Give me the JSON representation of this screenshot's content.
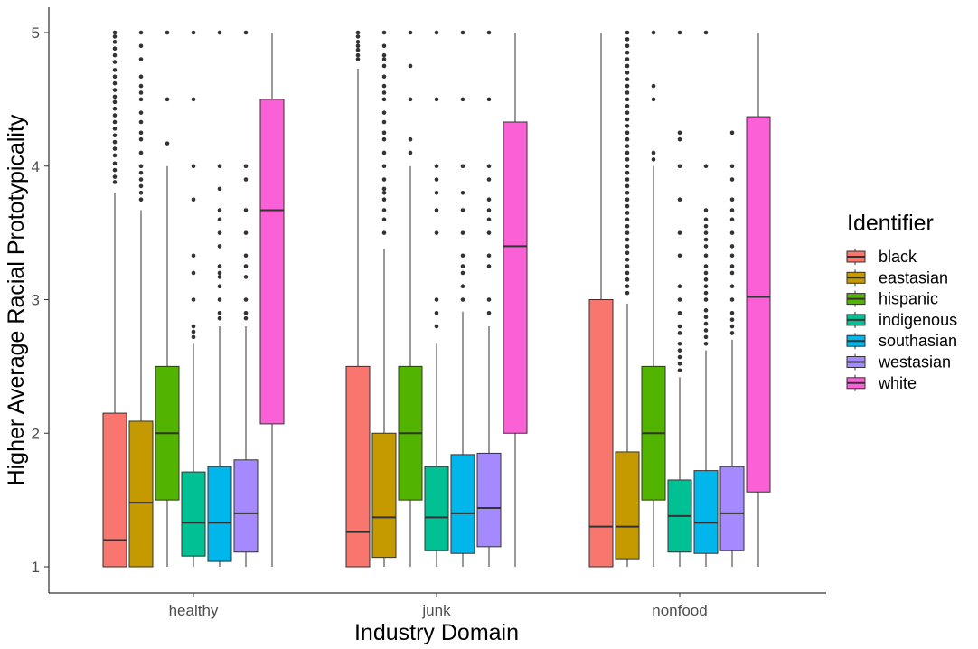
{
  "chart_data": {
    "type": "boxplot",
    "xlabel": "Industry Domain",
    "ylabel": "Higher Average Racial Prototypicality",
    "ylim": [
      0.8,
      5.2
    ],
    "yticks": [
      1,
      2,
      3,
      4,
      5
    ],
    "legend": {
      "title": "Identifier",
      "placement": "right",
      "entries": [
        "black",
        "eastasian",
        "hispanic",
        "indigenous",
        "southasian",
        "westasian",
        "white"
      ]
    },
    "colors": {
      "black": "#F8766D",
      "eastasian": "#C49A00",
      "hispanic": "#53B400",
      "indigenous": "#00C094",
      "southasian": "#00B6EB",
      "westasian": "#A58AFF",
      "white": "#FB61D7"
    },
    "categories": [
      "healthy",
      "junk",
      "nonfood"
    ],
    "groups": [
      {
        "category": "healthy",
        "boxes": [
          {
            "series": "black",
            "min": 1,
            "q1": 1,
            "median": 1.2,
            "q3": 2.15,
            "max": 3.8,
            "outliers": [
              3.88,
              3.92,
              3.97,
              4.02,
              4.08,
              4.13,
              4.18,
              4.23,
              4.28,
              4.33,
              4.38,
              4.43,
              4.48,
              4.52,
              4.57,
              4.62,
              4.67,
              4.72,
              4.78,
              4.83,
              4.88,
              4.93,
              4.97,
              5.0
            ]
          },
          {
            "series": "eastasian",
            "min": 1,
            "q1": 1,
            "median": 1.48,
            "q3": 2.09,
            "max": 3.67,
            "outliers": [
              3.75,
              3.8,
              3.85,
              3.9,
              3.95,
              4.0,
              4.1,
              4.2,
              4.25,
              4.33,
              4.4,
              4.5,
              4.55,
              4.6,
              4.67,
              4.8,
              4.9,
              5.0
            ]
          },
          {
            "series": "hispanic",
            "min": 1,
            "q1": 1.5,
            "median": 2.0,
            "q3": 2.5,
            "max": 4.0,
            "outliers": [
              4.17,
              4.5,
              5.0
            ]
          },
          {
            "series": "indigenous",
            "min": 1,
            "q1": 1.08,
            "median": 1.33,
            "q3": 1.71,
            "max": 2.67,
            "outliers": [
              2.72,
              2.76,
              2.8,
              3.0,
              3.2,
              3.33,
              3.75,
              4.0,
              4.5,
              5.0
            ]
          },
          {
            "series": "southasian",
            "min": 1,
            "q1": 1.04,
            "median": 1.33,
            "q3": 1.75,
            "max": 2.8,
            "outliers": [
              2.86,
              2.9,
              3.0,
              3.1,
              3.17,
              3.2,
              3.25,
              3.4,
              3.5,
              3.6,
              3.67,
              3.83,
              4.0,
              5.0
            ]
          },
          {
            "series": "westasian",
            "min": 1,
            "q1": 1.11,
            "median": 1.4,
            "q3": 1.8,
            "max": 2.8,
            "outliers": [
              2.86,
              2.9,
              3.0,
              3.17,
              3.25,
              3.33,
              3.5,
              3.67,
              3.9,
              4.0,
              5.0
            ]
          },
          {
            "series": "white",
            "min": 1,
            "q1": 2.07,
            "median": 3.67,
            "q3": 4.5,
            "max": 5.0,
            "outliers": []
          }
        ]
      },
      {
        "category": "junk",
        "boxes": [
          {
            "series": "black",
            "min": 1,
            "q1": 1,
            "median": 1.26,
            "q3": 2.5,
            "max": 4.73,
            "outliers": [
              4.8,
              4.83,
              4.87,
              4.9,
              4.93,
              4.97,
              5.0
            ]
          },
          {
            "series": "eastasian",
            "min": 1,
            "q1": 1.07,
            "median": 1.37,
            "q3": 2.0,
            "max": 3.38,
            "outliers": [
              3.5,
              3.6,
              3.67,
              3.75,
              3.8,
              3.83,
              3.9,
              4.0,
              4.1,
              4.2,
              4.25,
              4.33,
              4.4,
              4.5,
              4.55,
              4.6,
              4.67,
              4.75,
              4.8,
              4.83,
              4.9,
              5.0
            ]
          },
          {
            "series": "hispanic",
            "min": 1,
            "q1": 1.5,
            "median": 2.0,
            "q3": 2.5,
            "max": 4.0,
            "outliers": [
              4.1,
              4.2,
              4.5,
              4.75,
              5.0
            ]
          },
          {
            "series": "indigenous",
            "min": 1,
            "q1": 1.12,
            "median": 1.37,
            "q3": 1.75,
            "max": 2.67,
            "outliers": [
              2.8,
              2.9,
              3.0,
              3.5,
              3.67,
              3.8,
              3.9,
              4.0,
              4.5,
              5.0
            ]
          },
          {
            "series": "southasian",
            "min": 1,
            "q1": 1.1,
            "median": 1.4,
            "q3": 1.84,
            "max": 2.91,
            "outliers": [
              3.0,
              3.1,
              3.2,
              3.25,
              3.33,
              3.5,
              3.67,
              3.8,
              4.0,
              4.5,
              5.0
            ]
          },
          {
            "series": "westasian",
            "min": 1,
            "q1": 1.15,
            "median": 1.44,
            "q3": 1.85,
            "max": 2.8,
            "outliers": [
              2.9,
              3.0,
              3.25,
              3.33,
              3.5,
              3.6,
              3.67,
              3.75,
              3.9,
              4.0,
              4.5,
              5.0
            ]
          },
          {
            "series": "white",
            "min": 1,
            "q1": 2.0,
            "median": 3.4,
            "q3": 4.33,
            "max": 5.0,
            "outliers": []
          }
        ]
      },
      {
        "category": "nonfood",
        "boxes": [
          {
            "series": "black",
            "min": 1,
            "q1": 1,
            "median": 1.3,
            "q3": 3.0,
            "max": 5.0,
            "outliers": []
          },
          {
            "series": "eastasian",
            "min": 1,
            "q1": 1.06,
            "median": 1.3,
            "q3": 1.86,
            "max": 2.97,
            "outliers": [
              3.05,
              3.1,
              3.15,
              3.2,
              3.25,
              3.3,
              3.35,
              3.4,
              3.45,
              3.5,
              3.55,
              3.6,
              3.65,
              3.7,
              3.75,
              3.8,
              3.85,
              3.9,
              3.95,
              4.0,
              4.05,
              4.1,
              4.15,
              4.2,
              4.25,
              4.3,
              4.35,
              4.4,
              4.45,
              4.5,
              4.55,
              4.6,
              4.65,
              4.7,
              4.75,
              4.8,
              4.85,
              4.9,
              4.95,
              5.0
            ]
          },
          {
            "series": "hispanic",
            "min": 1,
            "q1": 1.5,
            "median": 2.0,
            "q3": 2.5,
            "max": 4.0,
            "outliers": [
              4.05,
              4.1,
              4.5,
              4.6,
              5.0
            ]
          },
          {
            "series": "indigenous",
            "min": 1,
            "q1": 1.11,
            "median": 1.38,
            "q3": 1.65,
            "max": 2.42,
            "outliers": [
              2.47,
              2.52,
              2.57,
              2.62,
              2.67,
              2.75,
              2.8,
              2.9,
              3.0,
              3.1,
              3.33,
              3.5,
              3.75,
              4.0,
              4.2,
              4.25,
              5.0
            ]
          },
          {
            "series": "southasian",
            "min": 1,
            "q1": 1.1,
            "median": 1.33,
            "q3": 1.72,
            "max": 2.62,
            "outliers": [
              2.67,
              2.72,
              2.77,
              2.82,
              2.87,
              2.92,
              3.0,
              3.05,
              3.1,
              3.15,
              3.2,
              3.25,
              3.33,
              3.4,
              3.45,
              3.5,
              3.55,
              3.6,
              3.67,
              4.0,
              5.0
            ]
          },
          {
            "series": "westasian",
            "min": 1,
            "q1": 1.12,
            "median": 1.4,
            "q3": 1.75,
            "max": 2.7,
            "outliers": [
              2.75,
              2.8,
              2.85,
              2.9,
              3.0,
              3.1,
              3.2,
              3.25,
              3.33,
              3.4,
              3.5,
              3.6,
              3.67,
              3.75,
              3.9,
              4.0,
              4.25
            ]
          },
          {
            "series": "white",
            "min": 1,
            "q1": 1.56,
            "median": 3.02,
            "q3": 4.37,
            "max": 5.0,
            "outliers": []
          }
        ]
      }
    ]
  }
}
